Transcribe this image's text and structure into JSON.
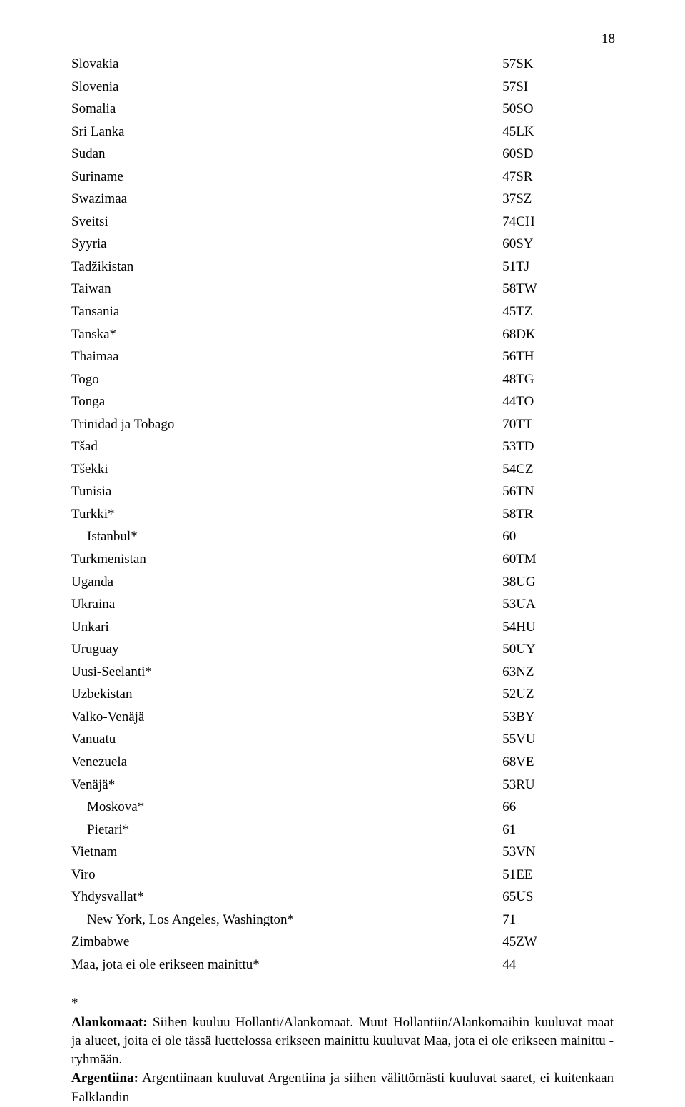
{
  "page_number": "18",
  "rows": [
    {
      "name": "Slovakia",
      "num": "57",
      "code": "SK",
      "indent": false
    },
    {
      "name": "Slovenia",
      "num": "57",
      "code": "SI",
      "indent": false
    },
    {
      "name": "Somalia",
      "num": "50",
      "code": "SO",
      "indent": false
    },
    {
      "name": "Sri Lanka",
      "num": "45",
      "code": "LK",
      "indent": false
    },
    {
      "name": "Sudan",
      "num": "60",
      "code": "SD",
      "indent": false
    },
    {
      "name": "Suriname",
      "num": "47",
      "code": "SR",
      "indent": false
    },
    {
      "name": "Swazimaa",
      "num": "37",
      "code": "SZ",
      "indent": false
    },
    {
      "name": "Sveitsi",
      "num": "74",
      "code": "CH",
      "indent": false
    },
    {
      "name": "Syyria",
      "num": "60",
      "code": "SY",
      "indent": false
    },
    {
      "name": "Tadžikistan",
      "num": "51",
      "code": "TJ",
      "indent": false
    },
    {
      "name": "Taiwan",
      "num": "58",
      "code": "TW",
      "indent": false
    },
    {
      "name": "Tansania",
      "num": "45",
      "code": "TZ",
      "indent": false
    },
    {
      "name": "Tanska*",
      "num": "68",
      "code": "DK",
      "indent": false
    },
    {
      "name": "Thaimaa",
      "num": "56",
      "code": "TH",
      "indent": false
    },
    {
      "name": "Togo",
      "num": "48",
      "code": "TG",
      "indent": false
    },
    {
      "name": "Tonga",
      "num": "44",
      "code": "TO",
      "indent": false
    },
    {
      "name": "Trinidad ja Tobago",
      "num": "70",
      "code": "TT",
      "indent": false
    },
    {
      "name": "Tšad",
      "num": "53",
      "code": "TD",
      "indent": false
    },
    {
      "name": "Tšekki",
      "num": "54",
      "code": "CZ",
      "indent": false
    },
    {
      "name": "Tunisia",
      "num": "56",
      "code": "TN",
      "indent": false
    },
    {
      "name": "Turkki*",
      "num": "58",
      "code": "TR",
      "indent": false
    },
    {
      "name": "Istanbul*",
      "num": "60",
      "code": "",
      "indent": true
    },
    {
      "name": "Turkmenistan",
      "num": "60",
      "code": "TM",
      "indent": false
    },
    {
      "name": "Uganda",
      "num": "38",
      "code": "UG",
      "indent": false
    },
    {
      "name": "Ukraina",
      "num": "53",
      "code": "UA",
      "indent": false
    },
    {
      "name": "Unkari",
      "num": "54",
      "code": "HU",
      "indent": false
    },
    {
      "name": "Uruguay",
      "num": "50",
      "code": "UY",
      "indent": false
    },
    {
      "name": "Uusi-Seelanti*",
      "num": "63",
      "code": "NZ",
      "indent": false
    },
    {
      "name": "Uzbekistan",
      "num": "52",
      "code": "UZ",
      "indent": false
    },
    {
      "name": "Valko-Venäjä",
      "num": "53",
      "code": "BY",
      "indent": false
    },
    {
      "name": "Vanuatu",
      "num": "55",
      "code": "VU",
      "indent": false
    },
    {
      "name": "Venezuela",
      "num": "68",
      "code": "VE",
      "indent": false
    },
    {
      "name": "Venäjä*",
      "num": "53",
      "code": "RU",
      "indent": false
    },
    {
      "name": "Moskova*",
      "num": "66",
      "code": "",
      "indent": true
    },
    {
      "name": "Pietari*",
      "num": "61",
      "code": "",
      "indent": true
    },
    {
      "name": "Vietnam",
      "num": "53",
      "code": "VN",
      "indent": false
    },
    {
      "name": "Viro",
      "num": "51",
      "code": "EE",
      "indent": false
    },
    {
      "name": "Yhdysvallat*",
      "num": "65",
      "code": "US",
      "indent": false
    },
    {
      "name": "New York, Los Angeles, Washington*",
      "num": "71",
      "code": "",
      "indent": true
    },
    {
      "name": "Zimbabwe",
      "num": "45",
      "code": "ZW",
      "indent": false
    },
    {
      "name": "Maa, jota ei ole erikseen mainittu*",
      "num": "44",
      "code": "",
      "indent": false
    }
  ],
  "footer": {
    "star": "*",
    "p1_bold": "Alankomaat:",
    "p1_rest": " Siihen kuuluu Hollanti/Alankomaat. Muut Hollantiin/Alankomaihin kuuluvat maat ja alueet, joita ei ole tässä luettelossa erikseen mainittu kuuluvat Maa, jota ei ole erikseen mainittu -ryhmään.",
    "p2_bold": "Argentiina:",
    "p2_rest": " Argentiinaan kuuluvat Argentiina ja siihen välittömästi kuuluvat saaret, ei kuitenkaan Falklandin"
  }
}
